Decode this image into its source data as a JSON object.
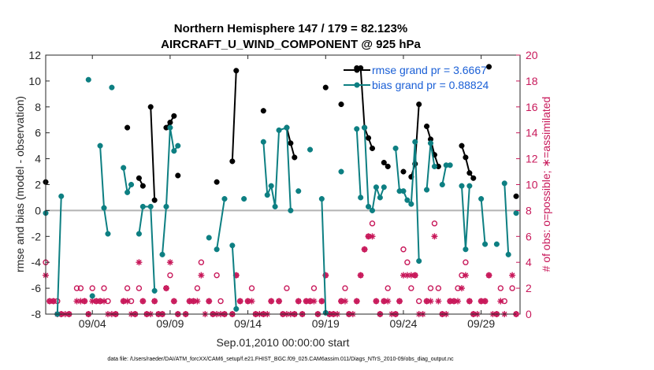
{
  "chart_data": {
    "type": "line",
    "title": "Northern Hemisphere 147 / 179 = 82.123%",
    "subtitle": "AIRCRAFT_U_WIND_COMPONENT @ 925 hPa",
    "xlabel": "Sep.01,2010 00:00:00 start",
    "ylabel": "rmse and bias (model - observation)",
    "ylabel_right": "# of obs: o=possible; ∗=assimilated",
    "xlim": [
      0,
      30.5
    ],
    "ylim": [
      -8,
      12
    ],
    "ylim_right": [
      0,
      20
    ],
    "x_ticks": [
      {
        "x": 3,
        "label": "09/04"
      },
      {
        "x": 8,
        "label": "09/09"
      },
      {
        "x": 13,
        "label": "09/14"
      },
      {
        "x": 18,
        "label": "09/19"
      },
      {
        "x": 23,
        "label": "09/24"
      },
      {
        "x": 28,
        "label": "09/29"
      }
    ],
    "y_ticks": [
      -8,
      -6,
      -4,
      -2,
      0,
      2,
      4,
      6,
      8,
      10,
      12
    ],
    "y_ticks_right": [
      0,
      2,
      4,
      6,
      8,
      10,
      12,
      14,
      16,
      18,
      20
    ],
    "grid": false,
    "legend_position": "top-right",
    "colors": {
      "rmse": "#000000",
      "bias": "#0d7f82",
      "obs": "#c8185a",
      "zero_line": "#b3b3b3"
    },
    "series": [
      {
        "name": "rmse grand pr = 3.6667",
        "segments": [
          [
            [
              0.0,
              2.2
            ]
          ],
          [
            [
              5.25,
              6.4
            ]
          ],
          [
            [
              6.0,
              2.5
            ],
            [
              6.25,
              1.9
            ]
          ],
          [
            [
              6.75,
              8.0
            ],
            [
              7.0,
              0.8
            ]
          ],
          [
            [
              7.75,
              6.4
            ],
            [
              8.0,
              6.8
            ],
            [
              8.25,
              7.3
            ]
          ],
          [
            [
              8.5,
              2.7
            ]
          ],
          [
            [
              11.0,
              2.2
            ]
          ],
          [
            [
              12.0,
              3.8
            ],
            [
              12.25,
              10.8
            ]
          ],
          [
            [
              14.0,
              7.7
            ]
          ],
          [
            [
              15.5,
              6.4
            ],
            [
              15.75,
              5.2
            ],
            [
              16.0,
              4.1
            ]
          ],
          [
            [
              18.0,
              9.5
            ]
          ],
          [
            [
              19.0,
              8.2
            ]
          ],
          [
            [
              20.0,
              11.0
            ],
            [
              20.25,
              11.0
            ],
            [
              20.5,
              6.4
            ],
            [
              20.75,
              5.6
            ],
            [
              21.0,
              4.8
            ]
          ],
          [
            [
              21.75,
              3.7
            ],
            [
              22.0,
              3.4
            ]
          ],
          [
            [
              23.0,
              3.0
            ]
          ],
          [
            [
              23.5,
              2.6
            ],
            [
              23.75,
              3.6
            ],
            [
              24.0,
              8.2
            ]
          ],
          [
            [
              24.5,
              6.5
            ],
            [
              24.75,
              5.5
            ],
            [
              25.0,
              4.3
            ],
            [
              25.25,
              3.4
            ]
          ],
          [
            [
              26.75,
              5.0
            ],
            [
              27.0,
              4.1
            ],
            [
              27.25,
              2.9
            ],
            [
              27.5,
              2.5
            ]
          ],
          [
            [
              28.5,
              11.1
            ]
          ],
          [
            [
              30.25,
              1.1
            ]
          ]
        ]
      },
      {
        "name": "bias grand pr = 0.88824",
        "segments": [
          [
            [
              0.0,
              -0.2
            ]
          ],
          [
            [
              1.0,
              1.1
            ],
            [
              0.75,
              -8.0
            ]
          ],
          [
            [
              2.75,
              10.1
            ]
          ],
          [
            [
              3.0,
              -6.6
            ]
          ],
          [
            [
              3.5,
              5.0
            ],
            [
              3.75,
              0.2
            ],
            [
              4.0,
              -1.8
            ]
          ],
          [
            [
              4.25,
              9.5
            ]
          ],
          [
            [
              5.0,
              3.3
            ],
            [
              5.25,
              1.4
            ],
            [
              5.5,
              2.0
            ]
          ],
          [
            [
              6.0,
              -1.8
            ],
            [
              6.25,
              0.3
            ],
            [
              6.75,
              0.3
            ],
            [
              7.0,
              -6.2
            ]
          ],
          [
            [
              7.5,
              -3.4
            ],
            [
              7.75,
              0.3
            ],
            [
              8.0,
              6.4
            ],
            [
              8.25,
              4.6
            ],
            [
              8.5,
              5.0
            ]
          ],
          [
            [
              10.5,
              -2.1
            ]
          ],
          [
            [
              11.0,
              -3.0
            ],
            [
              11.5,
              0.9
            ]
          ],
          [
            [
              12.0,
              -2.7
            ],
            [
              12.25,
              -7.6
            ]
          ],
          [
            [
              12.75,
              0.9
            ]
          ],
          [
            [
              14.0,
              5.3
            ],
            [
              14.25,
              1.2
            ],
            [
              14.5,
              1.9
            ],
            [
              14.75,
              0.3
            ],
            [
              15.0,
              6.2
            ],
            [
              15.5,
              6.4
            ],
            [
              15.75,
              0.0
            ]
          ],
          [
            [
              16.25,
              1.5
            ]
          ],
          [
            [
              17.0,
              4.7
            ]
          ],
          [
            [
              17.75,
              0.9
            ],
            [
              18.0,
              -7.9
            ]
          ],
          [
            [
              19.0,
              3.0
            ]
          ],
          [
            [
              20.0,
              6.3
            ],
            [
              20.25,
              1.0
            ]
          ],
          [
            [
              20.5,
              6.4
            ],
            [
              20.75,
              0.3
            ],
            [
              21.0,
              0.0
            ],
            [
              21.25,
              1.8
            ],
            [
              21.5,
              1.0
            ],
            [
              21.75,
              1.8
            ]
          ],
          [
            [
              22.5,
              4.8
            ],
            [
              22.75,
              1.5
            ],
            [
              23.0,
              1.5
            ],
            [
              23.25,
              0.8
            ],
            [
              23.5,
              0.5
            ],
            [
              23.75,
              5.3
            ],
            [
              24.0,
              -3.9
            ]
          ],
          [
            [
              24.5,
              1.6
            ],
            [
              24.75,
              5.2
            ],
            [
              25.0,
              3.4
            ]
          ],
          [
            [
              25.5,
              2.0
            ],
            [
              25.75,
              3.5
            ],
            [
              26.0,
              3.5
            ]
          ],
          [
            [
              26.75,
              1.9
            ],
            [
              27.0,
              -3.0
            ],
            [
              27.25,
              1.9
            ]
          ],
          [
            [
              28.0,
              0.9
            ],
            [
              28.25,
              -2.6
            ]
          ],
          [
            [
              29.0,
              -2.6
            ]
          ],
          [
            [
              29.5,
              2.1
            ],
            [
              29.75,
              -3.4
            ]
          ],
          [
            [
              30.25,
              -0.2
            ]
          ]
        ]
      }
    ],
    "obs_possible": [
      [
        0.0,
        4
      ],
      [
        0.25,
        1
      ],
      [
        0.5,
        1
      ],
      [
        0.75,
        1
      ],
      [
        1.0,
        0
      ],
      [
        1.5,
        0
      ],
      [
        2.0,
        2
      ],
      [
        2.25,
        2
      ],
      [
        2.5,
        1
      ],
      [
        2.75,
        0
      ],
      [
        3.0,
        2
      ],
      [
        3.25,
        1
      ],
      [
        3.5,
        1
      ],
      [
        3.75,
        2
      ],
      [
        4.0,
        1
      ],
      [
        4.5,
        0
      ],
      [
        5.0,
        1
      ],
      [
        5.25,
        2
      ],
      [
        5.5,
        1
      ],
      [
        5.75,
        0
      ],
      [
        6.0,
        2
      ],
      [
        6.25,
        1
      ],
      [
        6.5,
        0
      ],
      [
        7.0,
        1
      ],
      [
        7.25,
        0
      ],
      [
        7.5,
        0
      ],
      [
        7.75,
        2
      ],
      [
        8.0,
        3
      ],
      [
        8.25,
        1
      ],
      [
        8.5,
        0
      ],
      [
        9.0,
        0
      ],
      [
        9.25,
        1
      ],
      [
        9.5,
        1
      ],
      [
        9.75,
        2
      ],
      [
        10.0,
        4
      ],
      [
        10.5,
        1
      ],
      [
        10.75,
        0
      ],
      [
        11.0,
        3
      ],
      [
        11.25,
        1
      ],
      [
        11.5,
        0
      ],
      [
        12.0,
        0
      ],
      [
        12.25,
        3
      ],
      [
        12.5,
        1
      ],
      [
        13.0,
        1
      ],
      [
        13.25,
        2
      ],
      [
        13.5,
        0
      ],
      [
        14.0,
        0
      ],
      [
        14.5,
        1
      ],
      [
        15.0,
        1
      ],
      [
        15.25,
        0
      ],
      [
        15.5,
        2
      ],
      [
        16.0,
        0
      ],
      [
        16.25,
        1
      ],
      [
        16.5,
        0
      ],
      [
        16.75,
        1
      ],
      [
        17.0,
        1
      ],
      [
        17.25,
        2
      ],
      [
        17.5,
        0
      ],
      [
        17.75,
        1
      ],
      [
        18.0,
        3
      ],
      [
        18.25,
        0
      ],
      [
        18.5,
        0
      ],
      [
        19.0,
        1
      ],
      [
        19.25,
        2
      ],
      [
        19.5,
        0
      ],
      [
        20.0,
        1
      ],
      [
        20.25,
        3
      ],
      [
        20.5,
        5
      ],
      [
        20.75,
        6
      ],
      [
        21.0,
        7
      ],
      [
        21.25,
        1
      ],
      [
        21.5,
        0
      ],
      [
        21.75,
        1
      ],
      [
        22.0,
        2
      ],
      [
        22.5,
        0
      ],
      [
        22.75,
        1
      ],
      [
        23.0,
        5
      ],
      [
        23.25,
        4
      ],
      [
        23.5,
        2
      ],
      [
        23.75,
        3
      ],
      [
        24.0,
        1
      ],
      [
        24.5,
        1
      ],
      [
        24.75,
        2
      ],
      [
        25.0,
        7
      ],
      [
        25.25,
        2
      ],
      [
        25.5,
        0
      ],
      [
        26.0,
        1
      ],
      [
        26.25,
        1
      ],
      [
        26.5,
        2
      ],
      [
        26.75,
        3
      ],
      [
        27.0,
        4
      ],
      [
        27.25,
        1
      ],
      [
        27.5,
        0
      ],
      [
        28.0,
        1
      ],
      [
        28.25,
        1
      ],
      [
        28.5,
        3
      ],
      [
        29.0,
        0
      ],
      [
        29.25,
        2
      ],
      [
        29.5,
        1
      ],
      [
        30.0,
        2
      ],
      [
        30.25,
        0
      ]
    ],
    "obs_assimilated": [
      [
        0.0,
        3
      ],
      [
        0.25,
        1
      ],
      [
        0.5,
        1
      ],
      [
        0.75,
        0
      ],
      [
        1.0,
        0
      ],
      [
        1.25,
        0
      ],
      [
        1.5,
        0
      ],
      [
        2.0,
        1
      ],
      [
        2.25,
        1
      ],
      [
        2.5,
        1
      ],
      [
        2.75,
        0
      ],
      [
        3.0,
        1
      ],
      [
        3.25,
        1
      ],
      [
        3.5,
        1
      ],
      [
        3.75,
        1
      ],
      [
        4.0,
        0
      ],
      [
        4.25,
        0
      ],
      [
        4.5,
        0
      ],
      [
        5.0,
        1
      ],
      [
        5.25,
        1
      ],
      [
        5.5,
        0
      ],
      [
        5.75,
        0
      ],
      [
        6.0,
        4
      ],
      [
        6.25,
        1
      ],
      [
        6.5,
        0
      ],
      [
        6.75,
        0
      ],
      [
        7.0,
        1
      ],
      [
        7.25,
        0
      ],
      [
        7.5,
        0
      ],
      [
        7.75,
        2
      ],
      [
        8.0,
        4
      ],
      [
        8.25,
        1
      ],
      [
        8.5,
        0
      ],
      [
        9.0,
        0
      ],
      [
        9.25,
        1
      ],
      [
        9.5,
        1
      ],
      [
        9.75,
        1
      ],
      [
        10.0,
        3
      ],
      [
        10.25,
        0
      ],
      [
        10.5,
        1
      ],
      [
        10.75,
        0
      ],
      [
        11.0,
        0
      ],
      [
        11.25,
        0
      ],
      [
        11.5,
        0
      ],
      [
        12.0,
        0
      ],
      [
        12.25,
        3
      ],
      [
        12.5,
        1
      ],
      [
        13.0,
        1
      ],
      [
        13.25,
        1
      ],
      [
        13.5,
        0
      ],
      [
        13.75,
        0
      ],
      [
        14.0,
        0
      ],
      [
        14.25,
        0
      ],
      [
        14.5,
        1
      ],
      [
        15.0,
        1
      ],
      [
        15.25,
        0
      ],
      [
        15.5,
        0
      ],
      [
        15.75,
        0
      ],
      [
        16.0,
        0
      ],
      [
        16.25,
        1
      ],
      [
        16.5,
        0
      ],
      [
        16.75,
        1
      ],
      [
        17.0,
        1
      ],
      [
        17.25,
        1
      ],
      [
        17.5,
        0
      ],
      [
        17.75,
        1
      ],
      [
        18.0,
        3
      ],
      [
        18.25,
        0
      ],
      [
        18.5,
        0
      ],
      [
        18.75,
        0
      ],
      [
        19.0,
        1
      ],
      [
        19.25,
        1
      ],
      [
        19.5,
        0
      ],
      [
        19.75,
        0
      ],
      [
        20.0,
        1
      ],
      [
        20.25,
        3
      ],
      [
        20.5,
        5
      ],
      [
        20.75,
        6
      ],
      [
        21.0,
        6
      ],
      [
        21.25,
        1
      ],
      [
        21.5,
        0
      ],
      [
        21.75,
        1
      ],
      [
        22.0,
        1
      ],
      [
        22.25,
        0
      ],
      [
        22.5,
        0
      ],
      [
        22.75,
        1
      ],
      [
        23.0,
        3
      ],
      [
        23.25,
        3
      ],
      [
        23.5,
        3
      ],
      [
        23.75,
        3
      ],
      [
        24.0,
        0
      ],
      [
        24.25,
        0
      ],
      [
        24.5,
        1
      ],
      [
        24.75,
        1
      ],
      [
        25.0,
        6
      ],
      [
        25.25,
        1
      ],
      [
        25.5,
        0
      ],
      [
        25.75,
        0
      ],
      [
        26.0,
        1
      ],
      [
        26.25,
        1
      ],
      [
        26.5,
        1
      ],
      [
        26.75,
        2
      ],
      [
        27.0,
        3
      ],
      [
        27.25,
        1
      ],
      [
        27.5,
        0
      ],
      [
        27.75,
        0
      ],
      [
        28.0,
        1
      ],
      [
        28.25,
        1
      ],
      [
        28.5,
        3
      ],
      [
        28.75,
        0
      ],
      [
        29.0,
        0
      ],
      [
        29.25,
        1
      ],
      [
        29.5,
        0
      ],
      [
        30.0,
        3
      ],
      [
        30.25,
        0
      ]
    ]
  },
  "footnote": "data file: /Users/raeder/DAI/ATM_forcXX/CAM6_setup/f.e21.FHIST_BGC.f09_025.CAM6assim.011/Diags_NTrS_2010-09/obs_diag_output.nc"
}
